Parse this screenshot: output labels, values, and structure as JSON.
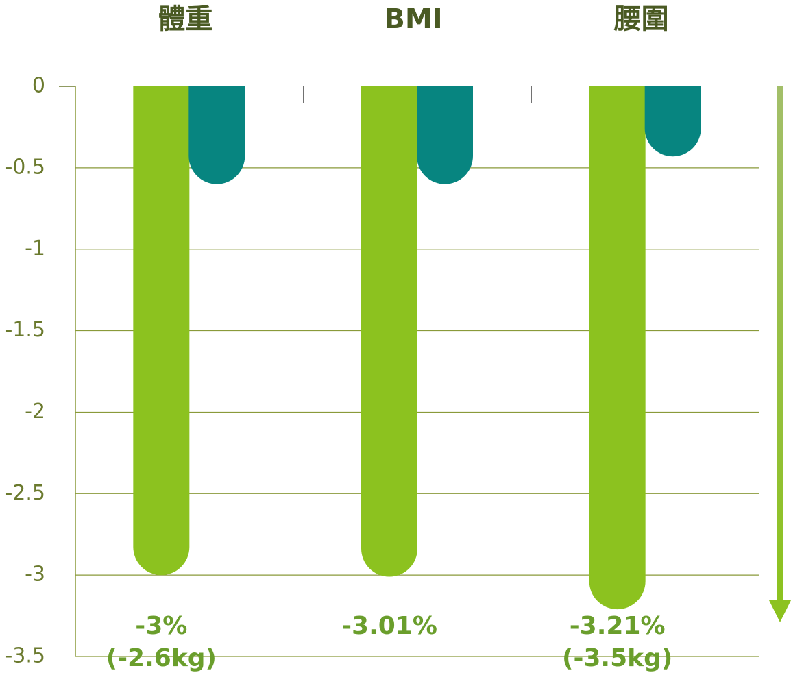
{
  "chart_data": {
    "type": "bar",
    "categories": [
      "體重",
      "BMI",
      "腰圍"
    ],
    "series": [
      {
        "color": "#8cc21f",
        "values": [
          -3,
          -3.01,
          -3.21
        ],
        "value_labels": [
          "-3%",
          "-3.01%",
          "-3.21%"
        ],
        "sublabels": [
          "(-2.6kg)",
          null,
          "(-3.5kg)"
        ]
      },
      {
        "color": "#078580",
        "values": [
          -0.6,
          -0.6,
          -0.43
        ]
      }
    ],
    "ylim": [
      -3.5,
      0
    ],
    "yticks": [
      0,
      -0.5,
      -1,
      -1.5,
      -2,
      -2.5,
      -3,
      -3.5
    ],
    "grid": true
  }
}
